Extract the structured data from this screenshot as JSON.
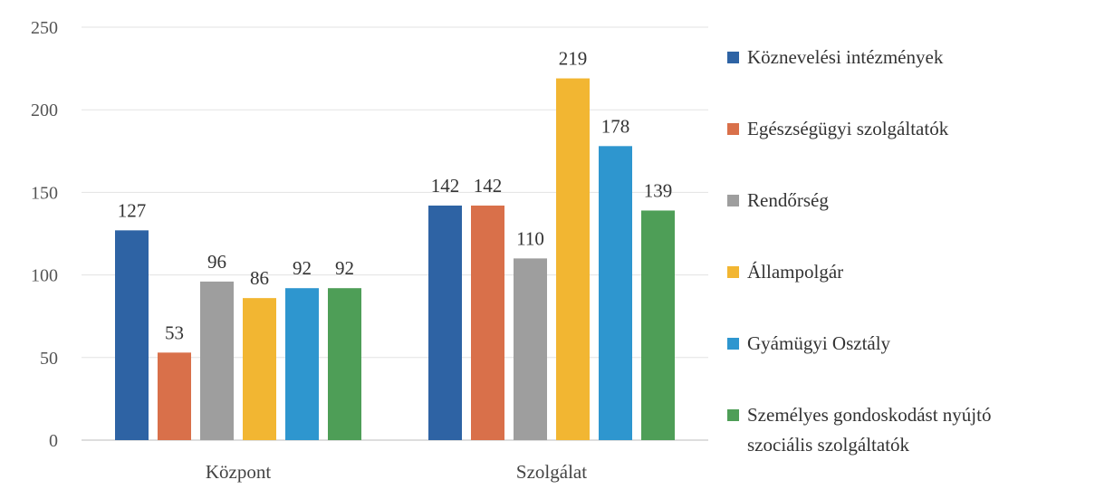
{
  "chart_data": {
    "type": "bar",
    "title": "",
    "xlabel": "",
    "ylabel": "",
    "categories": [
      "Központ",
      "Szolgálat"
    ],
    "ylim": [
      0,
      250
    ],
    "yticks": [
      0,
      50,
      100,
      150,
      200,
      250
    ],
    "grid": true,
    "legend_position": "right",
    "series": [
      {
        "name": "Köznevelési intézmények",
        "values": [
          127,
          142
        ],
        "color": "#2e63a4"
      },
      {
        "name": "Egészségügyi szolgáltatók",
        "values": [
          53,
          142
        ],
        "color": "#d9704a"
      },
      {
        "name": "Rendőrség",
        "values": [
          96,
          110
        ],
        "color": "#9e9e9e"
      },
      {
        "name": "Állampolgár",
        "values": [
          86,
          219
        ],
        "color": "#f2b632"
      },
      {
        "name": "Gyámügyi Osztály",
        "values": [
          92,
          178
        ],
        "color": "#2e96cf"
      },
      {
        "name": "Személyes gondoskodást nyújtó szociális szolgáltatók",
        "values": [
          92,
          139
        ],
        "color": "#4e9e57"
      }
    ]
  }
}
